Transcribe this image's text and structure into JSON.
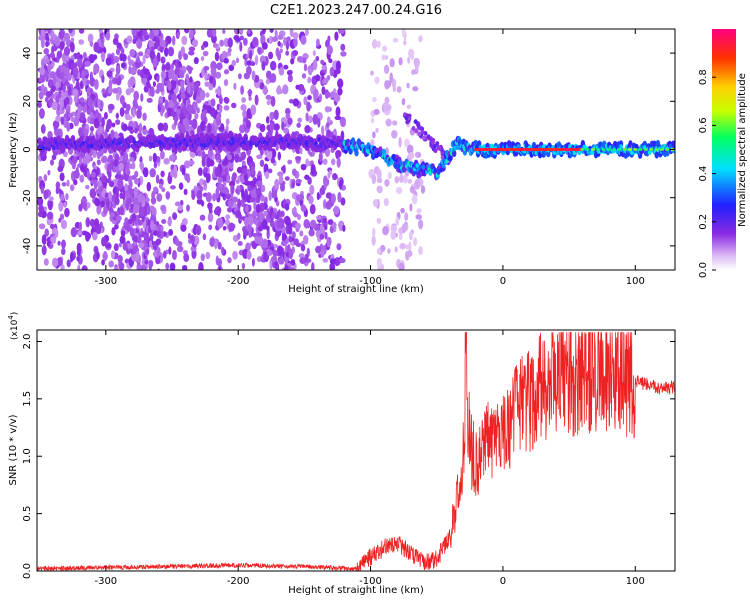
{
  "title": "C2E1.2023.247.00.24.G16",
  "chart_data": [
    {
      "type": "heatmap",
      "xlabel": "Height of straight line (km)",
      "ylabel": "Frequency (Hz)",
      "xlim": [
        -352,
        130
      ],
      "ylim": [
        -50,
        50
      ],
      "xticks": [
        -300,
        -200,
        -100,
        0,
        100
      ],
      "yticks": [
        -40,
        -20,
        0,
        20,
        40
      ],
      "colorbar": {
        "label": "Normalized spectral amplitude",
        "range": [
          0,
          1
        ],
        "ticks": [
          "0.0",
          "0.2",
          "0.4",
          "0.6",
          "0.8"
        ],
        "colors": [
          "#ffffff",
          "#dcb8f5",
          "#8a2be2",
          "#2020ff",
          "#00e0ff",
          "#00ff60",
          "#c8ff00",
          "#ffd000",
          "#ff3000",
          "#ff0080"
        ]
      },
      "features": {
        "noise_regions_x": [
          [
            -350,
            -120
          ],
          [
            -100,
            -60
          ]
        ],
        "carrier_track": [
          {
            "x": -350,
            "y": 2
          },
          {
            "x": -250,
            "y": 3
          },
          {
            "x": -150,
            "y": 3
          },
          {
            "x": -120,
            "y": 2
          },
          {
            "x": -100,
            "y": 0
          },
          {
            "x": -80,
            "y": -6
          },
          {
            "x": -50,
            "y": -10
          },
          {
            "x": -35,
            "y": 2
          },
          {
            "x": -20,
            "y": 0
          },
          {
            "x": 0,
            "y": 0
          },
          {
            "x": 50,
            "y": 0
          },
          {
            "x": 130,
            "y": 0
          }
        ],
        "peak_amplitude_segment_x": [
          -20,
          60
        ]
      }
    },
    {
      "type": "line",
      "xlabel": "Height of straight line (km)",
      "ylabel": "SNR (10 * v/v)",
      "y_multiplier": "(x10",
      "y_multiplier_exp": "4",
      "y_multiplier_close": ")",
      "xlim": [
        -352,
        130
      ],
      "ylim": [
        0,
        2.1
      ],
      "xticks": [
        -300,
        -200,
        -100,
        0,
        100
      ],
      "yticks": [
        "0.0",
        "0.5",
        "1.0",
        "1.5",
        "2.0"
      ],
      "color": "#ee2222",
      "series": [
        {
          "x": [
            -352,
            -300,
            -250,
            -200,
            -150,
            -110,
            -100,
            -90,
            -80,
            -70,
            -60,
            -50,
            -40,
            -35,
            -30,
            -28,
            -25,
            -20,
            -15,
            -10,
            -5,
            0,
            5,
            10,
            20,
            30,
            40,
            50,
            60,
            70,
            80,
            90,
            100,
            110,
            120,
            130
          ],
          "values": [
            0.02,
            0.03,
            0.04,
            0.05,
            0.04,
            0.02,
            0.12,
            0.2,
            0.25,
            0.15,
            0.08,
            0.1,
            0.3,
            0.6,
            1.0,
            1.9,
            1.1,
            0.9,
            1.0,
            1.2,
            1.15,
            1.25,
            1.3,
            1.4,
            1.5,
            1.6,
            1.75,
            1.7,
            1.65,
            1.75,
            1.7,
            1.7,
            1.65,
            1.62,
            1.6,
            1.6
          ]
        }
      ]
    }
  ]
}
